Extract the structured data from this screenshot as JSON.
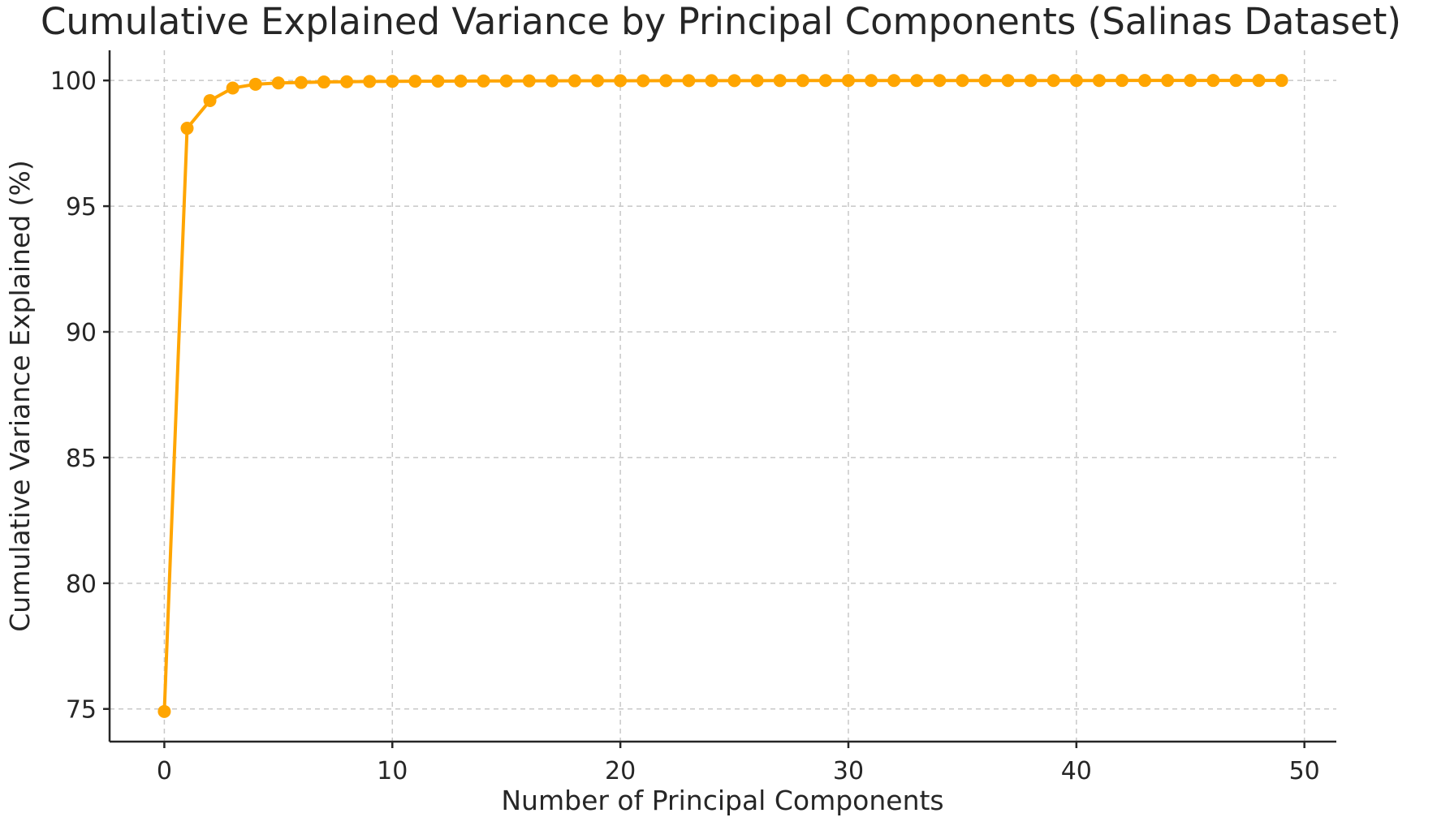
{
  "chart_data": {
    "type": "line",
    "title": "Cumulative Explained Variance by Principal Components (Salinas Dataset)",
    "xlabel": "Number of Principal Components",
    "ylabel": "Cumulative Variance Explained (%)",
    "xlim": [
      -2.4,
      51.4
    ],
    "ylim": [
      73.7,
      101.2
    ],
    "xticks": [
      0,
      10,
      20,
      30,
      40,
      50
    ],
    "yticks": [
      75,
      80,
      85,
      90,
      95,
      100
    ],
    "xtick_labels": [
      "0",
      "10",
      "20",
      "30",
      "40",
      "50"
    ],
    "ytick_labels": [
      "75",
      "80",
      "85",
      "90",
      "95",
      "100"
    ],
    "grid": true,
    "line_color": "#FFA500",
    "marker": "circle",
    "series": [
      {
        "x": [
          0,
          1,
          2,
          3,
          4,
          5,
          6,
          7,
          8,
          9,
          10,
          11,
          12,
          13,
          14,
          15,
          16,
          17,
          18,
          19,
          20,
          21,
          22,
          23,
          24,
          25,
          26,
          27,
          28,
          29,
          30,
          31,
          32,
          33,
          34,
          35,
          36,
          37,
          38,
          39,
          40,
          41,
          42,
          43,
          44,
          45,
          46,
          47,
          48,
          49
        ],
        "values": [
          74.9,
          98.1,
          99.2,
          99.7,
          99.85,
          99.9,
          99.92,
          99.94,
          99.95,
          99.96,
          99.965,
          99.97,
          99.975,
          99.978,
          99.98,
          99.982,
          99.984,
          99.986,
          99.988,
          99.989,
          99.99,
          99.991,
          99.992,
          99.993,
          99.994,
          99.995,
          99.995,
          99.996,
          99.996,
          99.997,
          99.997,
          99.997,
          99.998,
          99.998,
          99.998,
          99.998,
          99.999,
          99.999,
          99.999,
          99.999,
          99.999,
          99.999,
          100.0,
          100.0,
          100.0,
          100.0,
          100.0,
          100.0,
          100.0,
          100.0
        ]
      }
    ]
  }
}
